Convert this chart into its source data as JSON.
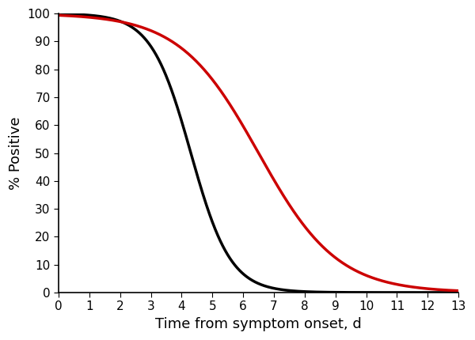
{
  "title": "",
  "xlabel": "Time from symptom onset, d",
  "ylabel": "% Positive",
  "xlim": [
    0,
    13
  ],
  "ylim": [
    0,
    100
  ],
  "xticks": [
    0,
    1,
    2,
    3,
    4,
    5,
    6,
    7,
    8,
    9,
    10,
    11,
    12,
    13
  ],
  "yticks": [
    0,
    10,
    20,
    30,
    40,
    50,
    60,
    70,
    80,
    90,
    100
  ],
  "black_line_color": "#000000",
  "red_line_color": "#cc0000",
  "line_width": 2.5,
  "black_midpoint": 4.3,
  "black_scale": 1.55,
  "red_midpoint": 6.5,
  "red_scale": 0.78,
  "xlabel_fontsize": 13,
  "ylabel_fontsize": 13,
  "tick_fontsize": 11,
  "fig_width": 6.0,
  "fig_height": 4.3
}
